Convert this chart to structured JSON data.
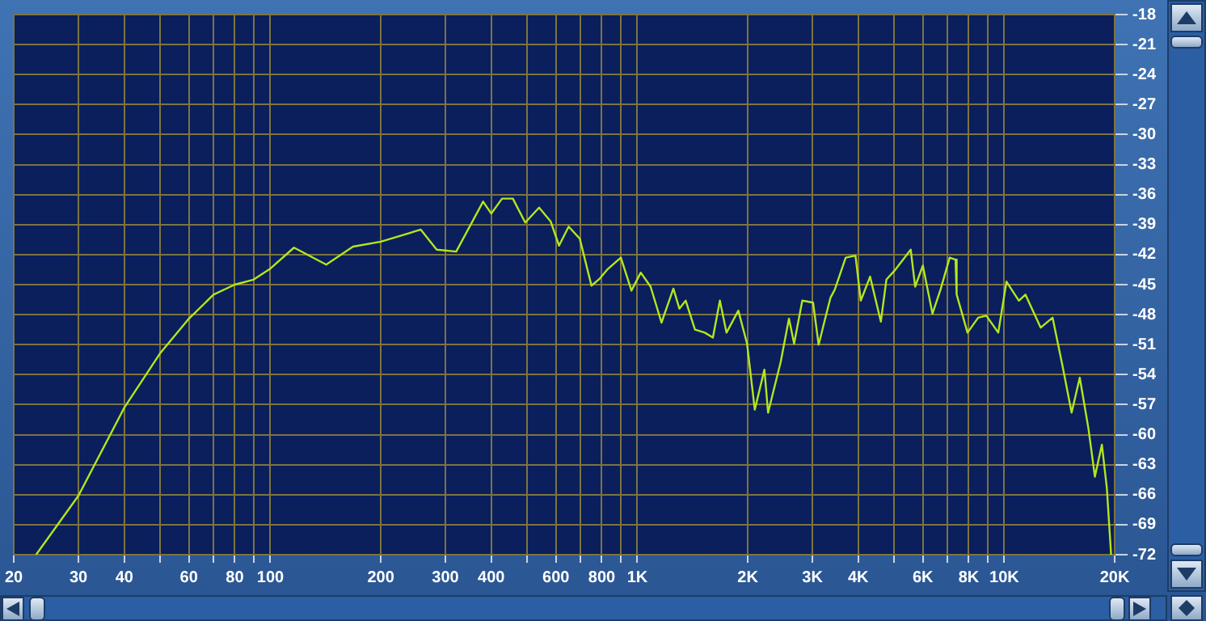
{
  "chart_data": {
    "type": "line",
    "log": "x",
    "grid": true,
    "color": "#b4e61e",
    "x": [
      23,
      30,
      40,
      50,
      60,
      70,
      80,
      90,
      100,
      116,
      142,
      168,
      200,
      257,
      284,
      321,
      380,
      400,
      428,
      458,
      495,
      540,
      581,
      612,
      650,
      697,
      750,
      790,
      828,
      902,
      964,
      1022,
      1087,
      1164,
      1254,
      1302,
      1355,
      1436,
      1527,
      1607,
      1679,
      1750,
      1885,
      1991,
      2090,
      2220,
      2272,
      2460,
      2590,
      2675,
      2816,
      3013,
      3120,
      3361,
      3453,
      3697,
      3931,
      4065,
      4309,
      4610,
      4773,
      5024,
      5560,
      5716,
      6000,
      6373,
      6704,
      7100,
      7365,
      7418,
      7940,
      8490,
      8935,
      9630,
      10140,
      10960,
      11420,
      12570,
      13540,
      14390,
      15260,
      16060,
      16960,
      17660,
      18450,
      19030,
      19550
    ],
    "values": [
      -72,
      -66.1,
      -57.3,
      -51.9,
      -48.4,
      -46,
      -45,
      -44.5,
      -43.4,
      -41.3,
      -43,
      -41.2,
      -40.7,
      -39.5,
      -41.5,
      -41.7,
      -36.7,
      -37.9,
      -36.4,
      -36.4,
      -38.8,
      -37.3,
      -38.7,
      -41.1,
      -39.2,
      -40.4,
      -45.1,
      -44.4,
      -43.5,
      -42.3,
      -45.6,
      -43.8,
      -45.2,
      -48.8,
      -45.4,
      -47.4,
      -46.6,
      -49.5,
      -49.8,
      -50.3,
      -46.6,
      -49.8,
      -47.6,
      -50.9,
      -57.5,
      -53.5,
      -57.8,
      -52.7,
      -48.4,
      -50.9,
      -46.6,
      -46.8,
      -51,
      -46.3,
      -45.5,
      -42.3,
      -42.1,
      -46.6,
      -44.2,
      -48.7,
      -44.5,
      -43.6,
      -41.5,
      -45.2,
      -43.1,
      -47.9,
      -45.5,
      -42.3,
      -42.5,
      -46,
      -49.8,
      -48.3,
      -48.1,
      -49.8,
      -44.7,
      -46.6,
      -46,
      -49.3,
      -48.3,
      -53,
      -57.8,
      -54.3,
      -59.4,
      -64.2,
      -61,
      -65.3,
      -72
    ],
    "xlim": [
      20,
      20000
    ],
    "ylim": [
      -72,
      -18
    ],
    "xticks": [
      20,
      30,
      40,
      {
        "value": 50,
        "label": null
      },
      60,
      {
        "value": 70,
        "label": null
      },
      80,
      {
        "value": 90,
        "label": null
      },
      100,
      200,
      300,
      400,
      {
        "value": 500,
        "label": null
      },
      600,
      {
        "value": 700,
        "label": null
      },
      800,
      {
        "value": 900,
        "label": null
      },
      {
        "value": 1000,
        "label": "1K"
      },
      {
        "value": 2000,
        "label": "2K"
      },
      {
        "value": 3000,
        "label": "3K"
      },
      {
        "value": 4000,
        "label": "4K"
      },
      {
        "value": 5000,
        "label": null
      },
      {
        "value": 6000,
        "label": "6K"
      },
      {
        "value": 7000,
        "label": null
      },
      {
        "value": 8000,
        "label": "8K"
      },
      {
        "value": 9000,
        "label": null
      },
      {
        "value": 10000,
        "label": "10K"
      },
      {
        "value": 20000,
        "label": "20K"
      }
    ],
    "yticks": [
      -18,
      -21,
      -24,
      -27,
      -30,
      -33,
      -36,
      -39,
      -42,
      -45,
      -48,
      -51,
      -54,
      -57,
      -60,
      -63,
      -66,
      -69,
      -72
    ]
  }
}
